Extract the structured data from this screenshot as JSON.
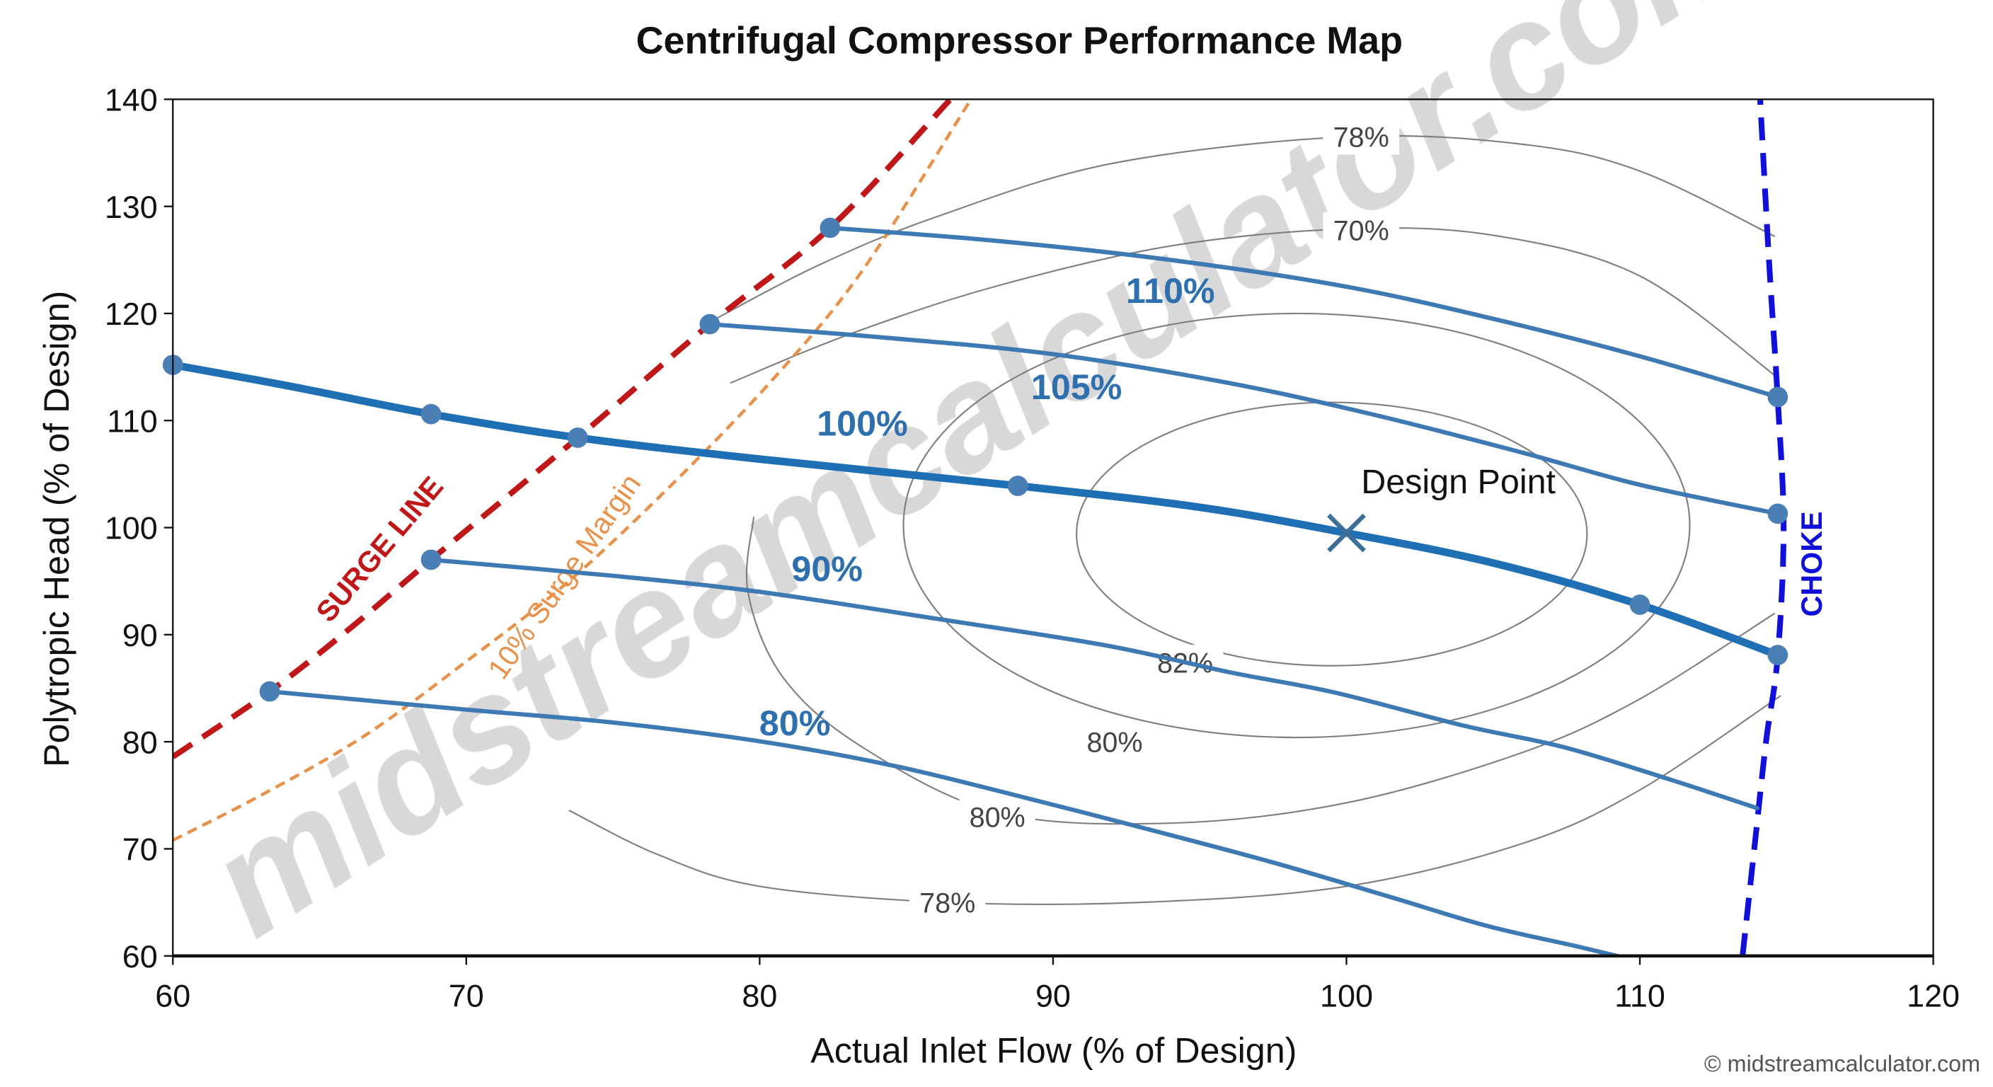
{
  "chart_data": {
    "type": "line",
    "title": "Centrifugal Compressor Performance Map",
    "xlabel": "Actual Inlet Flow (% of Design)",
    "ylabel": "Polytropic Head (% of Design)",
    "xlim": [
      60,
      120
    ],
    "ylim": [
      60,
      140
    ],
    "xticks": [
      "60",
      "70",
      "80",
      "90",
      "100",
      "110",
      "120"
    ],
    "yticks": [
      "60",
      "70",
      "80",
      "90",
      "100",
      "110",
      "120",
      "130",
      "140"
    ],
    "grid": false,
    "speed_lines": [
      {
        "name": "110%",
        "color": "#3d79b3",
        "label_at": [
          94,
          121
        ],
        "points": [
          [
            82.4,
            128
          ],
          [
            88,
            126.8
          ],
          [
            94,
            125
          ],
          [
            100,
            122.5
          ],
          [
            105,
            119.5
          ],
          [
            110,
            116
          ],
          [
            114.7,
            112.2
          ]
        ],
        "markers": [
          [
            82.4,
            128
          ],
          [
            114.7,
            112.2
          ]
        ]
      },
      {
        "name": "105%",
        "color": "#3d79b3",
        "label_at": [
          90.8,
          112
        ],
        "points": [
          [
            78.3,
            119
          ],
          [
            84,
            117.8
          ],
          [
            90,
            116.2
          ],
          [
            96,
            113.5
          ],
          [
            101,
            110.5
          ],
          [
            106,
            107
          ],
          [
            110,
            104
          ],
          [
            114.7,
            101.3
          ]
        ],
        "markers": [
          [
            78.3,
            119
          ],
          [
            114.7,
            101.3
          ]
        ]
      },
      {
        "name": "100%",
        "color": "#1f6fb5",
        "label_at": [
          83.5,
          108.6
        ],
        "bold": true,
        "points": [
          [
            60,
            115.2
          ],
          [
            64,
            113.2
          ],
          [
            68.8,
            110.6
          ],
          [
            73.8,
            108.4
          ],
          [
            80,
            106.4
          ],
          [
            88.8,
            103.9
          ],
          [
            95,
            101.9
          ],
          [
            100,
            99.5
          ],
          [
            105,
            96.7
          ],
          [
            110,
            92.8
          ],
          [
            114.7,
            88.1
          ]
        ],
        "markers": [
          [
            60,
            115.2
          ],
          [
            68.8,
            110.6
          ],
          [
            73.8,
            108.4
          ],
          [
            88.8,
            103.9
          ],
          [
            110,
            92.8
          ],
          [
            114.7,
            88.1
          ]
        ]
      },
      {
        "name": "90%",
        "color": "#3d79b3",
        "label_at": [
          82.3,
          95
        ],
        "points": [
          [
            68.8,
            97
          ],
          [
            75,
            95.5
          ],
          [
            80,
            94
          ],
          [
            86,
            91.5
          ],
          [
            91.8,
            89
          ],
          [
            96,
            86.5
          ],
          [
            99.6,
            84.6
          ],
          [
            104,
            81.5
          ],
          [
            107.4,
            79.5
          ],
          [
            111,
            76.5
          ],
          [
            114,
            73.8
          ]
        ],
        "markers": [
          [
            68.8,
            97
          ]
        ]
      },
      {
        "name": "80%",
        "color": "#3d79b3",
        "label_at": [
          81.2,
          80.6
        ],
        "points": [
          [
            63.3,
            84.7
          ],
          [
            70,
            83
          ],
          [
            75,
            81.8
          ],
          [
            80.1,
            80
          ],
          [
            84.5,
            77.8
          ],
          [
            88.3,
            75.3
          ],
          [
            93,
            72
          ],
          [
            97.4,
            68.8
          ],
          [
            101.5,
            65.5
          ],
          [
            104.8,
            62.8
          ],
          [
            108,
            60.8
          ],
          [
            110.4,
            59.2
          ]
        ],
        "markers": [
          [
            63.3,
            84.7
          ]
        ]
      }
    ],
    "efficiency_contours": [
      {
        "label": "78%",
        "label_at": [
          100.5,
          136.5
        ],
        "points": [
          [
            78.5,
            119.5
          ],
          [
            82,
            124.5
          ],
          [
            86,
            129
          ],
          [
            92,
            134
          ],
          [
            100,
            136.5
          ],
          [
            106,
            135.8
          ],
          [
            110,
            133.3
          ],
          [
            114.6,
            127.2
          ]
        ]
      },
      {
        "label": "70%",
        "label_at": [
          100.5,
          127.8
        ],
        "points": [
          [
            79,
            113.5
          ],
          [
            83,
            118
          ],
          [
            88,
            122.5
          ],
          [
            94,
            126.3
          ],
          [
            100,
            127.9
          ],
          [
            105,
            127.3
          ],
          [
            110,
            123.5
          ],
          [
            114.7,
            114
          ]
        ]
      },
      {
        "label": "80%",
        "label_at": [
          88.1,
          73
        ],
        "points": [
          [
            79.8,
            101
          ],
          [
            79.6,
            94
          ],
          [
            80.8,
            86
          ],
          [
            83.5,
            79.5
          ],
          [
            88.1,
            73.4
          ],
          [
            94,
            72.4
          ],
          [
            100,
            74.3
          ],
          [
            106,
            79
          ],
          [
            110,
            84
          ],
          [
            114.6,
            92
          ]
        ]
      },
      {
        "label": "78%",
        "label_at": [
          86.4,
          65
        ],
        "points": [
          [
            73.5,
            73.6
          ],
          [
            76.5,
            69.5
          ],
          [
            80,
            66.5
          ],
          [
            86.4,
            65
          ],
          [
            93,
            65
          ],
          [
            100,
            66.5
          ],
          [
            106,
            70.5
          ],
          [
            110,
            75.5
          ],
          [
            114.8,
            84.3
          ]
        ]
      },
      {
        "label": "80%",
        "label_at": [
          92.1,
          80
        ],
        "ellipse": {
          "cx": 98.3,
          "cy": 100.2,
          "rx": 13.4,
          "ry": 19.8
        }
      },
      {
        "label": "82%",
        "label_at": [
          94.5,
          87.4
        ],
        "ellipse": {
          "cx": 99.5,
          "cy": 99.4,
          "rx": 8.7,
          "ry": 12.3
        }
      }
    ],
    "surge_line": {
      "name": "SURGE LINE",
      "color": "#c01818",
      "label_at": [
        68,
        93
      ],
      "points": [
        [
          60,
          78.6
        ],
        [
          63.3,
          84.7
        ],
        [
          66,
          90.5
        ],
        [
          68.8,
          97
        ],
        [
          73.8,
          108.4
        ],
        [
          78.3,
          119
        ],
        [
          82.4,
          128
        ],
        [
          86.5,
          140
        ]
      ]
    },
    "surge_margin": {
      "name": "10% Surge Margin",
      "color": "#e8914a",
      "label_at": [
        70.5,
        88.5
      ],
      "points": [
        [
          60,
          70.8
        ],
        [
          63,
          75
        ],
        [
          66.5,
          80.5
        ],
        [
          70,
          87.5
        ],
        [
          73.5,
          95
        ],
        [
          77,
          104
        ],
        [
          80.5,
          114
        ],
        [
          83.5,
          124
        ],
        [
          87.2,
          140
        ]
      ]
    },
    "choke_line": {
      "name": "CHOKE",
      "color": "#1010d8",
      "label_at": [
        116.2,
        96.6
      ],
      "points": [
        [
          113.5,
          60
        ],
        [
          113.9,
          70
        ],
        [
          114.3,
          80
        ],
        [
          114.7,
          88
        ],
        [
          114.9,
          100
        ],
        [
          114.7,
          112
        ],
        [
          114.4,
          125
        ],
        [
          114.1,
          140
        ]
      ]
    },
    "design_point": {
      "label": "Design Point",
      "x": 100,
      "y": 99.5,
      "label_at": [
        100.5,
        103.2
      ],
      "color": "#3d6e9a"
    }
  },
  "watermark": "midstreamcalculator.com",
  "copyright": "© midstreamcalculator.com"
}
